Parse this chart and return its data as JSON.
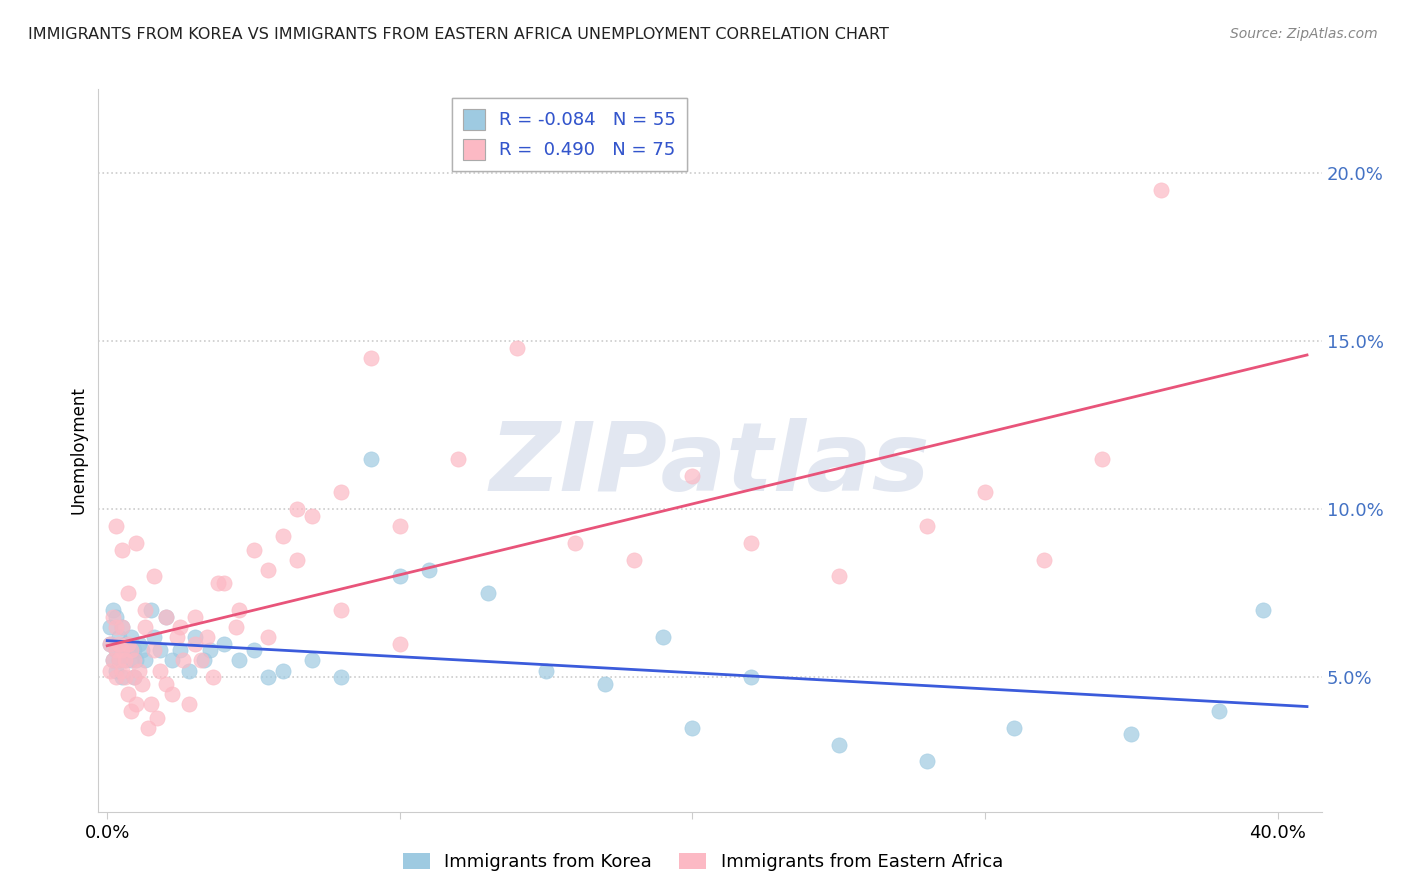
{
  "title": "IMMIGRANTS FROM KOREA VS IMMIGRANTS FROM EASTERN AFRICA UNEMPLOYMENT CORRELATION CHART",
  "source": "Source: ZipAtlas.com",
  "ylabel": "Unemployment",
  "y_tick_labels": [
    "5.0%",
    "10.0%",
    "15.0%",
    "20.0%"
  ],
  "y_tick_values": [
    0.05,
    0.1,
    0.15,
    0.2
  ],
  "x_tick_positions": [
    0.0,
    0.1,
    0.2,
    0.3,
    0.4
  ],
  "x_tick_labels_show": [
    "0.0%",
    "",
    "",
    "",
    "40.0%"
  ],
  "xlim": [
    -0.003,
    0.415
  ],
  "ylim": [
    0.01,
    0.225
  ],
  "korea_color": "#9ecae1",
  "africa_color": "#fcb9c4",
  "korea_line_color": "#3b5bdb",
  "africa_line_color": "#e8547a",
  "korea_R": -0.084,
  "korea_N": 55,
  "africa_R": 0.49,
  "africa_N": 75,
  "legend_korea": "Immigrants from Korea",
  "legend_africa": "Immigrants from Eastern Africa",
  "watermark_text": "ZIPatlas",
  "background_color": "#ffffff",
  "grid_color": "#cccccc",
  "korea_scatter_x": [
    0.001,
    0.001,
    0.002,
    0.002,
    0.003,
    0.003,
    0.003,
    0.004,
    0.004,
    0.005,
    0.005,
    0.005,
    0.006,
    0.006,
    0.007,
    0.008,
    0.008,
    0.009,
    0.009,
    0.01,
    0.011,
    0.012,
    0.013,
    0.015,
    0.016,
    0.018,
    0.02,
    0.022,
    0.025,
    0.028,
    0.03,
    0.033,
    0.035,
    0.04,
    0.045,
    0.05,
    0.055,
    0.06,
    0.07,
    0.08,
    0.09,
    0.1,
    0.11,
    0.13,
    0.15,
    0.17,
    0.19,
    0.2,
    0.22,
    0.25,
    0.28,
    0.31,
    0.35,
    0.38,
    0.395
  ],
  "korea_scatter_y": [
    0.065,
    0.06,
    0.055,
    0.07,
    0.058,
    0.052,
    0.068,
    0.062,
    0.055,
    0.058,
    0.065,
    0.05,
    0.055,
    0.06,
    0.058,
    0.055,
    0.062,
    0.058,
    0.05,
    0.055,
    0.06,
    0.058,
    0.055,
    0.07,
    0.062,
    0.058,
    0.068,
    0.055,
    0.058,
    0.052,
    0.062,
    0.055,
    0.058,
    0.06,
    0.055,
    0.058,
    0.05,
    0.052,
    0.055,
    0.05,
    0.115,
    0.08,
    0.082,
    0.075,
    0.052,
    0.048,
    0.062,
    0.035,
    0.05,
    0.03,
    0.025,
    0.035,
    0.033,
    0.04,
    0.07
  ],
  "africa_scatter_x": [
    0.001,
    0.001,
    0.002,
    0.002,
    0.003,
    0.003,
    0.003,
    0.004,
    0.004,
    0.005,
    0.005,
    0.005,
    0.006,
    0.006,
    0.007,
    0.007,
    0.008,
    0.008,
    0.009,
    0.009,
    0.01,
    0.011,
    0.012,
    0.013,
    0.014,
    0.015,
    0.016,
    0.017,
    0.018,
    0.02,
    0.022,
    0.024,
    0.026,
    0.028,
    0.03,
    0.032,
    0.034,
    0.036,
    0.04,
    0.044,
    0.05,
    0.055,
    0.06,
    0.065,
    0.07,
    0.08,
    0.09,
    0.1,
    0.12,
    0.14,
    0.16,
    0.18,
    0.2,
    0.22,
    0.25,
    0.28,
    0.3,
    0.32,
    0.34,
    0.36,
    0.003,
    0.005,
    0.007,
    0.01,
    0.013,
    0.016,
    0.02,
    0.025,
    0.03,
    0.038,
    0.045,
    0.055,
    0.065,
    0.08,
    0.1
  ],
  "africa_scatter_y": [
    0.06,
    0.052,
    0.068,
    0.055,
    0.058,
    0.05,
    0.065,
    0.055,
    0.06,
    0.052,
    0.058,
    0.065,
    0.05,
    0.055,
    0.06,
    0.045,
    0.058,
    0.04,
    0.055,
    0.05,
    0.042,
    0.052,
    0.048,
    0.065,
    0.035,
    0.042,
    0.058,
    0.038,
    0.052,
    0.048,
    0.045,
    0.062,
    0.055,
    0.042,
    0.068,
    0.055,
    0.062,
    0.05,
    0.078,
    0.065,
    0.088,
    0.082,
    0.092,
    0.1,
    0.098,
    0.105,
    0.145,
    0.095,
    0.115,
    0.148,
    0.09,
    0.085,
    0.11,
    0.09,
    0.08,
    0.095,
    0.105,
    0.085,
    0.115,
    0.195,
    0.095,
    0.088,
    0.075,
    0.09,
    0.07,
    0.08,
    0.068,
    0.065,
    0.06,
    0.078,
    0.07,
    0.062,
    0.085,
    0.07,
    0.06
  ]
}
